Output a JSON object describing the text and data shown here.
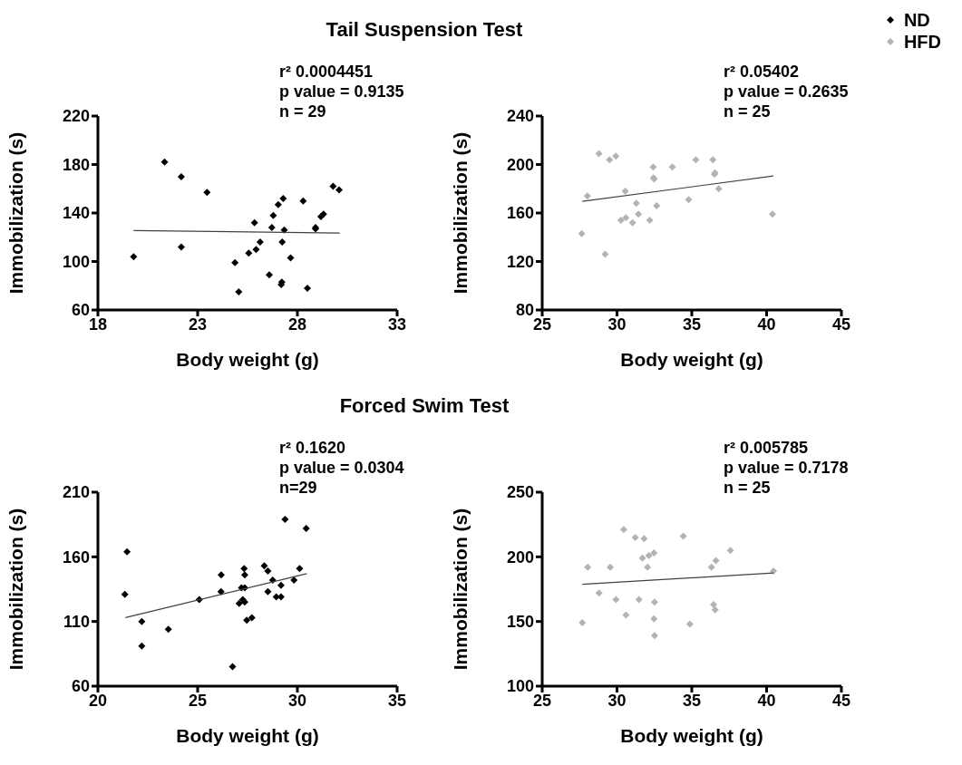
{
  "chart_data": [
    {
      "type": "scatter",
      "title": "Tail Suspension Test",
      "xlabel": "Body weight (g)",
      "ylabel": "Immobilization (s)",
      "xlim": [
        18,
        33
      ],
      "xticks": [
        18,
        23,
        28,
        33
      ],
      "ylim": [
        60,
        220
      ],
      "yticks": [
        60,
        100,
        140,
        180,
        220
      ],
      "grid": false,
      "annotations": [
        "r² 0.0004451",
        "p value = 0.9135",
        "n = 29"
      ],
      "series": [
        {
          "name": "ND",
          "color": "#000000",
          "marker": "diamond",
          "x": [
            19.79,
            21.34,
            22.18,
            22.18,
            23.47,
            24.87,
            25.06,
            25.56,
            25.85,
            25.93,
            26.13,
            26.59,
            26.72,
            26.79,
            27.04,
            27.19,
            27.22,
            27.24,
            27.29,
            27.34,
            27.66,
            28.29,
            28.5,
            28.91,
            28.91,
            29.18,
            29.31,
            29.79,
            30.09
          ],
          "values": [
            104,
            182,
            170,
            112,
            157,
            99,
            75,
            107,
            132,
            110,
            116,
            89,
            128,
            138,
            147,
            81,
            83,
            116,
            152,
            126,
            103,
            150,
            78,
            127,
            128,
            137,
            139,
            162,
            159
          ]
        },
        {
          "type": "line",
          "color": "#404040",
          "x": [
            19.79,
            30.12
          ],
          "values": [
            125.5,
            123.5
          ]
        }
      ]
    },
    {
      "type": "scatter",
      "xlabel": "Body weight (g)",
      "ylabel": "Immobilization (s)",
      "xlim": [
        25,
        45
      ],
      "xticks": [
        25,
        30,
        35,
        40,
        45
      ],
      "ylim": [
        80,
        240
      ],
      "yticks": [
        80,
        120,
        160,
        200,
        240
      ],
      "grid": false,
      "legend": "top right",
      "annotations": [
        "r² 0.05402",
        "p value = 0.2635",
        "n = 25"
      ],
      "series": [
        {
          "name": "HFD",
          "color": "#b3b3b3",
          "marker": "diamond",
          "x": [
            27.64,
            28.02,
            28.79,
            29.21,
            29.5,
            29.92,
            30.26,
            30.55,
            30.59,
            31.04,
            31.29,
            31.43,
            32.19,
            32.42,
            32.44,
            32.48,
            32.65,
            33.7,
            34.79,
            35.27,
            36.41,
            36.51,
            36.55,
            36.8,
            40.39
          ],
          "values": [
            143,
            174,
            209,
            126,
            204,
            207,
            154,
            178,
            156,
            152,
            168,
            159,
            154,
            198,
            189,
            188,
            166,
            198,
            171,
            204,
            204,
            192,
            193,
            180,
            159
          ]
        },
        {
          "type": "line",
          "color": "#404040",
          "x": [
            27.68,
            40.45
          ],
          "values": [
            169.6,
            190.5
          ]
        }
      ]
    },
    {
      "type": "scatter",
      "title": "Forced Swim Test",
      "xlabel": "Body weight (g)",
      "ylabel": "Immobilization (s)",
      "xlim": [
        20,
        35
      ],
      "xticks": [
        20,
        25,
        30,
        35
      ],
      "ylim": [
        60,
        210
      ],
      "yticks": [
        60,
        110,
        160,
        210
      ],
      "grid": false,
      "annotations": [
        "r² 0.1620",
        "p value = 0.0304",
        "n=29"
      ],
      "series": [
        {
          "color": "#000000",
          "marker": "diamond",
          "x": [
            21.35,
            21.46,
            22.2,
            22.2,
            23.53,
            25.08,
            26.17,
            26.18,
            26.75,
            27.08,
            27.2,
            27.26,
            27.33,
            27.36,
            27.36,
            27.36,
            27.46,
            27.72,
            28.34,
            28.52,
            28.52,
            28.76,
            28.94,
            29.18,
            29.18,
            29.38,
            29.83,
            30.11,
            30.44
          ],
          "values": [
            131,
            164,
            110,
            91,
            104,
            127,
            133,
            146,
            75,
            124,
            136,
            127,
            151,
            146,
            136,
            125,
            111,
            113,
            153,
            149,
            133,
            142,
            129,
            129,
            138,
            189,
            142,
            151,
            182
          ]
        },
        {
          "type": "line",
          "color": "#404040",
          "x": [
            21.38,
            30.47
          ],
          "values": [
            113,
            147
          ]
        }
      ]
    },
    {
      "type": "scatter",
      "xlabel": "Body weight (g)",
      "ylabel": "Immobilization (s)",
      "xlim": [
        25,
        45
      ],
      "xticks": [
        25,
        30,
        35,
        40,
        45
      ],
      "ylim": [
        100,
        250
      ],
      "yticks": [
        100,
        150,
        200,
        250
      ],
      "grid": false,
      "annotations": [
        "r² 0.005785",
        "p value = 0.7178",
        "n = 25"
      ],
      "series": [
        {
          "color": "#b3b3b3",
          "marker": "diamond",
          "x": [
            27.68,
            28.04,
            28.8,
            29.55,
            29.93,
            30.45,
            30.6,
            31.22,
            31.47,
            31.7,
            31.81,
            32.04,
            32.13,
            32.47,
            32.51,
            32.47,
            32.51,
            34.43,
            34.87,
            36.31,
            36.46,
            36.56,
            36.61,
            37.58,
            40.46
          ],
          "values": [
            149,
            192,
            172,
            192,
            167,
            221,
            155,
            215,
            167,
            199,
            214,
            192,
            201,
            203,
            165,
            152,
            139,
            216,
            148,
            192,
            163,
            159,
            197,
            205,
            189
          ]
        },
        {
          "type": "line",
          "color": "#404040",
          "x": [
            27.68,
            40.46
          ],
          "values": [
            178.7,
            187.5
          ]
        }
      ]
    }
  ]
}
